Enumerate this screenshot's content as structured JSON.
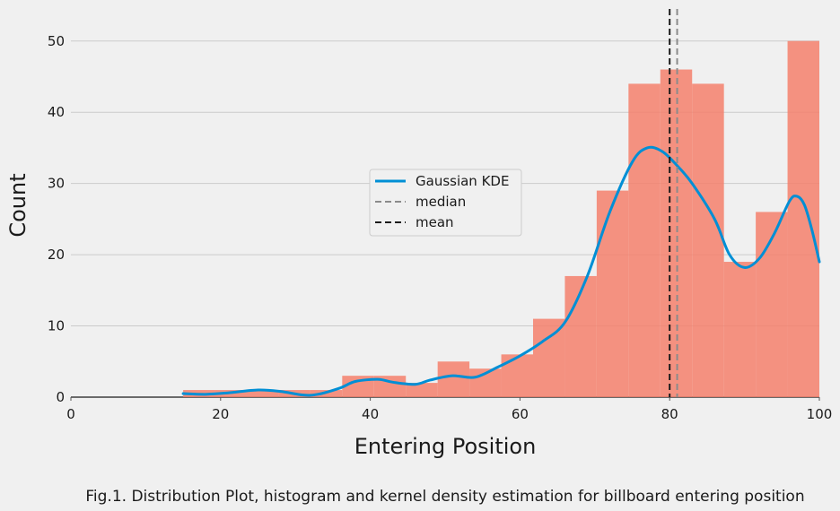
{
  "chart_data": {
    "type": "bar",
    "xlabel": "Entering Position",
    "ylabel": "Count",
    "caption": "Fig.1. Distribution Plot, histogram and kernel density estimation for billboard entering position",
    "xlim": [
      0,
      100
    ],
    "ylim": [
      0,
      54.5
    ],
    "xticks": [
      0,
      20,
      40,
      60,
      80,
      100
    ],
    "yticks": [
      0,
      10,
      20,
      30,
      40,
      50
    ],
    "grid": "horizontal",
    "legend_position": "center",
    "colors": {
      "bars": "#f4806c",
      "kde": "#008fd5",
      "median": "#8b8b8b",
      "mean": "#1a1a1a",
      "grid": "#cbcbcb",
      "background": "#f0f0f0"
    },
    "histogram": {
      "bins": [
        {
          "x0": 15.0,
          "x1": 19.25,
          "count": 1
        },
        {
          "x0": 19.25,
          "x1": 23.5,
          "count": 1
        },
        {
          "x0": 23.5,
          "x1": 27.75,
          "count": 1
        },
        {
          "x0": 27.75,
          "x1": 32.0,
          "count": 1
        },
        {
          "x0": 32.0,
          "x1": 36.25,
          "count": 1
        },
        {
          "x0": 36.25,
          "x1": 40.5,
          "count": 3
        },
        {
          "x0": 40.5,
          "x1": 44.75,
          "count": 3
        },
        {
          "x0": 44.75,
          "x1": 49.0,
          "count": 2
        },
        {
          "x0": 49.0,
          "x1": 53.25,
          "count": 5
        },
        {
          "x0": 53.25,
          "x1": 57.5,
          "count": 4
        },
        {
          "x0": 57.5,
          "x1": 61.75,
          "count": 6
        },
        {
          "x0": 61.75,
          "x1": 66.0,
          "count": 11
        },
        {
          "x0": 66.0,
          "x1": 70.25,
          "count": 17
        },
        {
          "x0": 70.25,
          "x1": 74.5,
          "count": 29
        },
        {
          "x0": 74.5,
          "x1": 78.75,
          "count": 44
        },
        {
          "x0": 78.75,
          "x1": 83.0,
          "count": 46
        },
        {
          "x0": 83.0,
          "x1": 87.25,
          "count": 44
        },
        {
          "x0": 87.25,
          "x1": 91.5,
          "count": 19
        },
        {
          "x0": 91.5,
          "x1": 95.75,
          "count": 26
        },
        {
          "x0": 95.75,
          "x1": 100.0,
          "count": 50
        }
      ]
    },
    "series": [
      {
        "name": "Gaussian KDE",
        "style": "solid",
        "x": [
          15,
          18,
          21,
          25,
          28,
          31,
          33,
          36,
          38,
          41,
          43,
          46,
          48,
          51,
          54,
          57,
          60,
          63,
          66,
          69,
          72,
          75,
          77,
          79,
          81,
          83,
          86,
          88,
          90,
          92,
          94,
          96,
          97,
          98,
          99,
          100
        ],
        "y": [
          0.5,
          0.4,
          0.6,
          1.0,
          0.8,
          0.3,
          0.4,
          1.3,
          2.2,
          2.5,
          2.1,
          1.8,
          2.4,
          3.0,
          2.8,
          4.2,
          5.8,
          7.8,
          10.5,
          17.0,
          26.0,
          33.0,
          35.0,
          34.5,
          32.5,
          30.0,
          25.0,
          20.0,
          18.2,
          19.5,
          23.0,
          27.5,
          28.2,
          27.0,
          23.5,
          19.0
        ]
      },
      {
        "name": "median",
        "style": "dashed",
        "x_value": 81.0
      },
      {
        "name": "mean",
        "style": "dashed",
        "x_value": 80.0
      }
    ]
  }
}
